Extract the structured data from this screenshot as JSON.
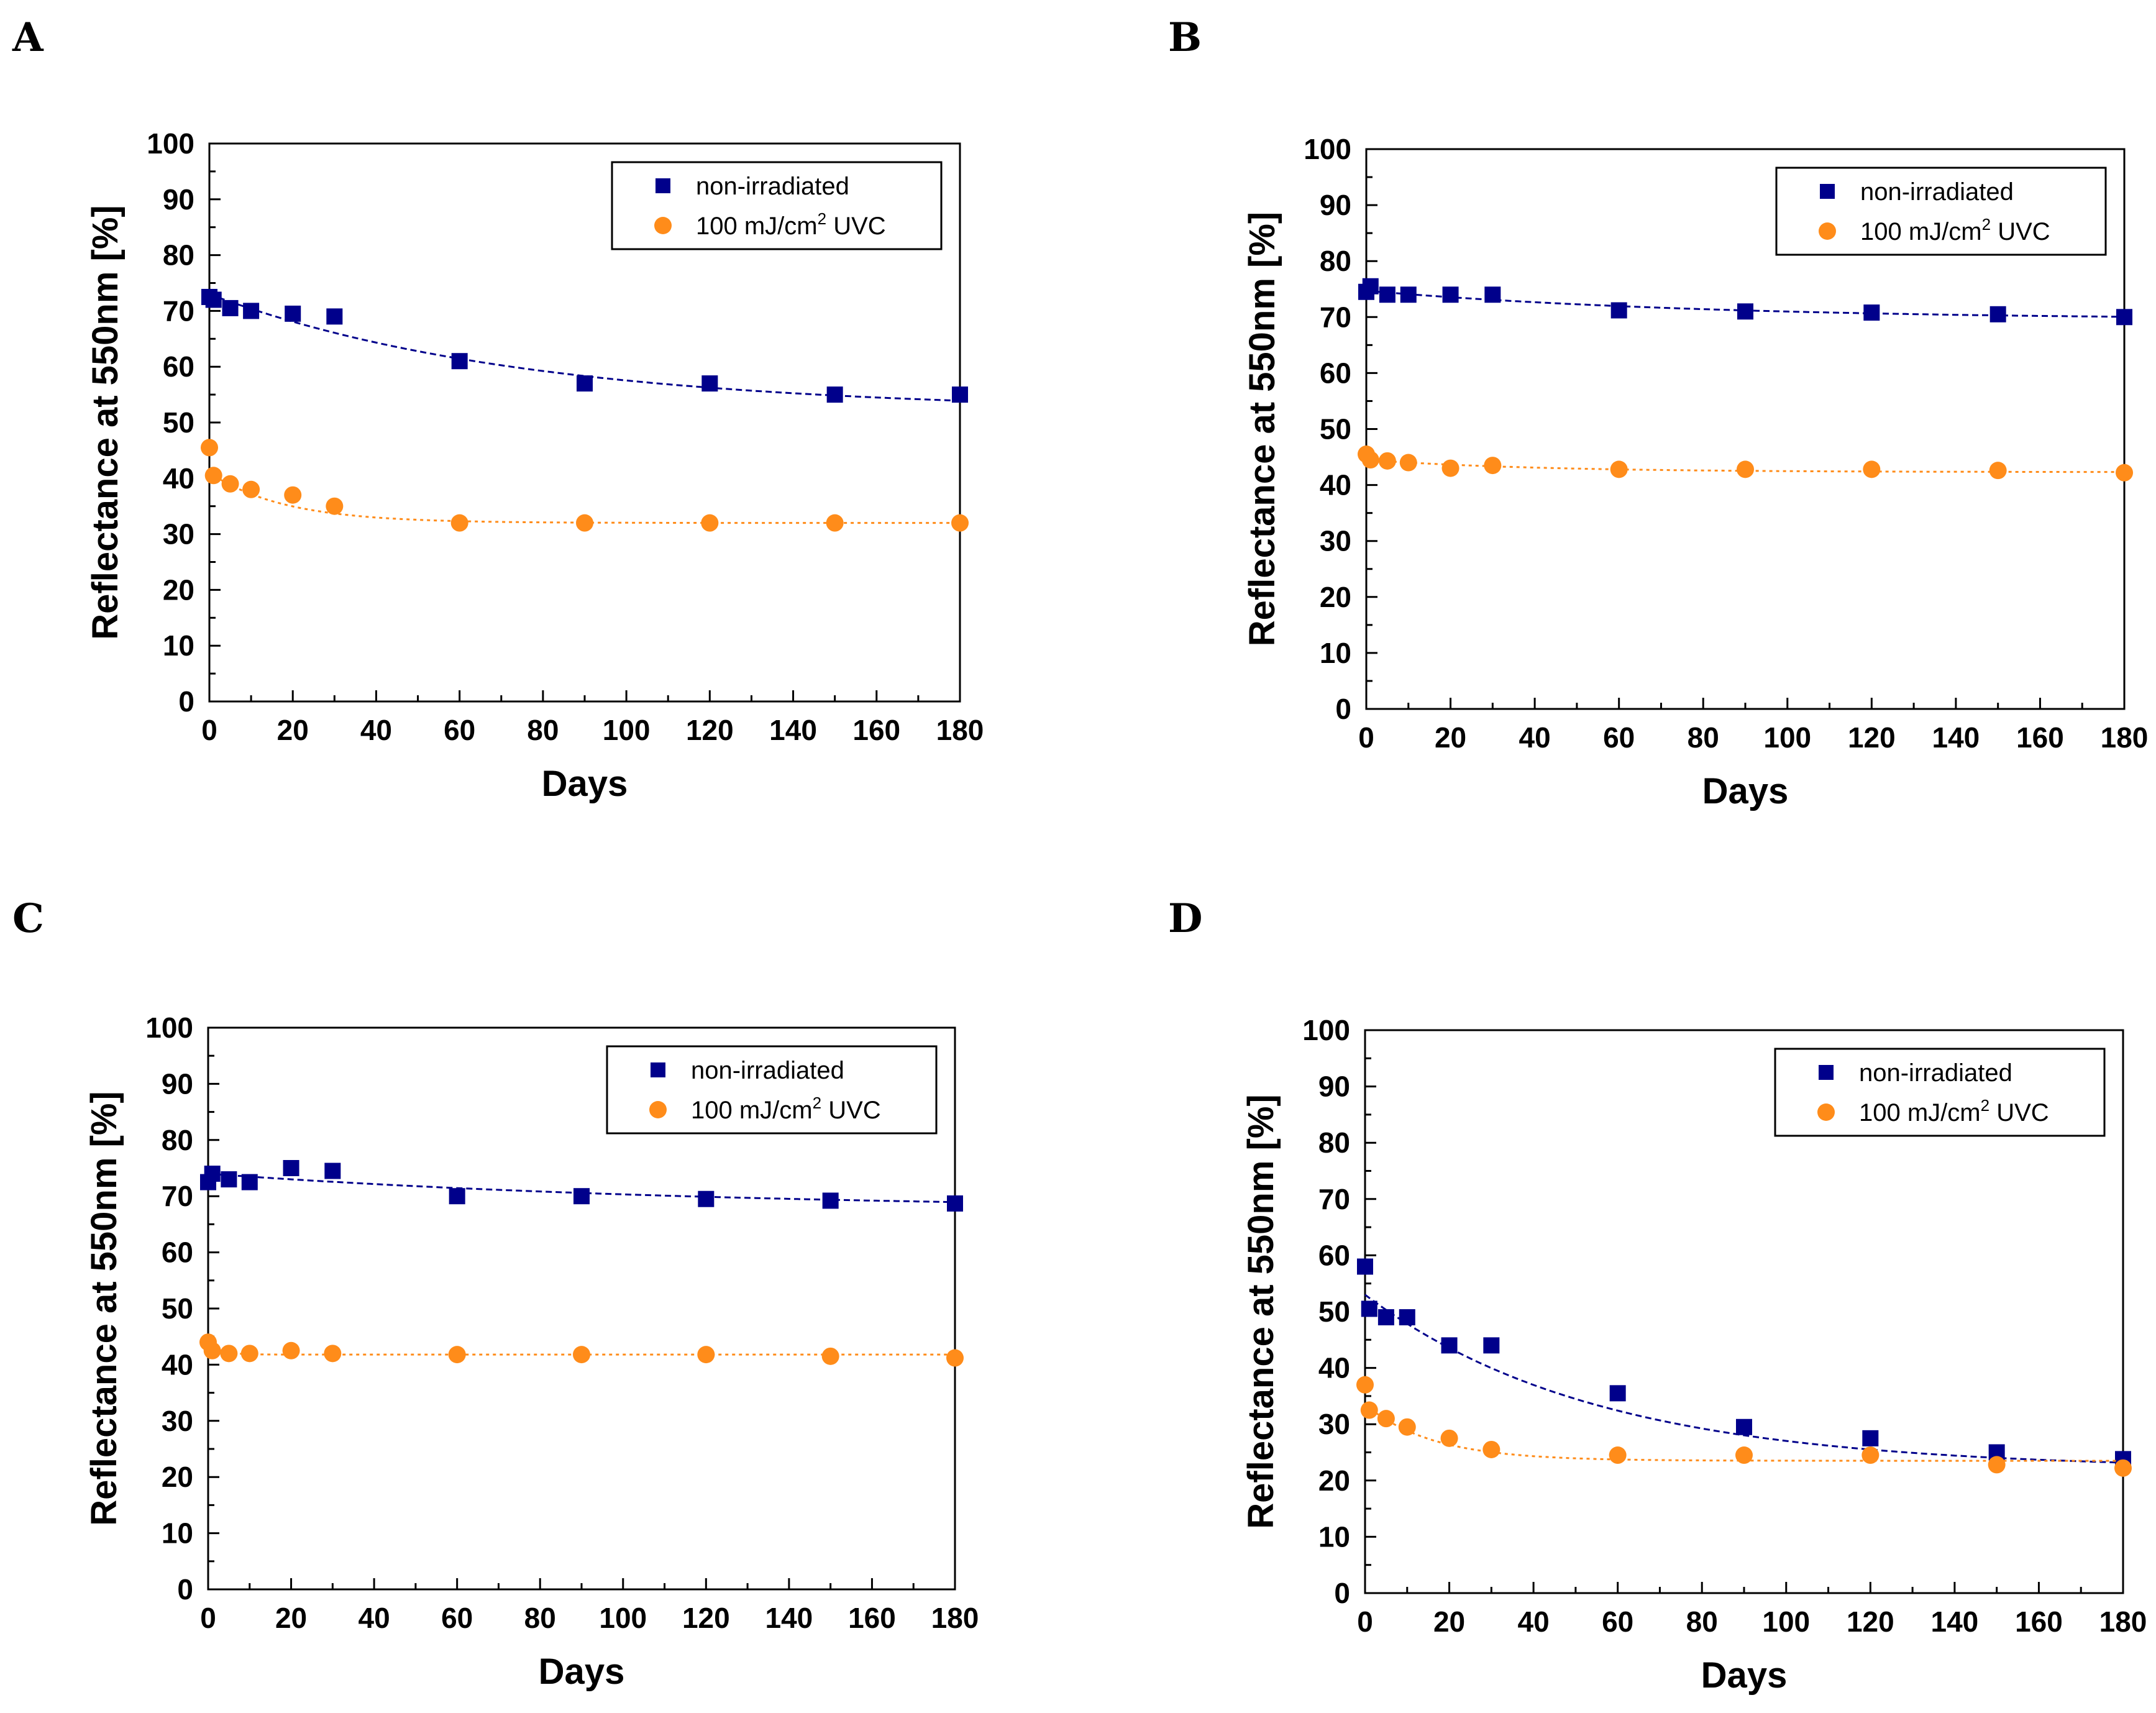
{
  "figure": {
    "colors": {
      "non_irradiated": "#00008B",
      "uvc": "#FF8C1A",
      "axis": "#000000"
    },
    "legend_labels": {
      "non_irradiated": "non-irradiated",
      "uvc_prefix": "100 mJ/cm",
      "uvc_sup": "2",
      "uvc_suffix": " UVC"
    }
  },
  "chart_data": [
    {
      "panel": "A",
      "type": "scatter",
      "xlabel": "Days",
      "ylabel": "Reflectance at 550nm [%]",
      "xlim": [
        0,
        180
      ],
      "ylim": [
        0,
        100
      ],
      "xticks": [
        0,
        20,
        40,
        60,
        80,
        100,
        120,
        140,
        160,
        180
      ],
      "yticks": [
        0,
        10,
        20,
        30,
        40,
        50,
        60,
        70,
        80,
        90,
        100
      ],
      "legend_position": "top-right",
      "series": [
        {
          "name": "non-irradiated",
          "marker": "square",
          "x": [
            0,
            1,
            5,
            10,
            20,
            30,
            60,
            90,
            120,
            150,
            180
          ],
          "y": [
            72.5,
            72,
            70.5,
            70,
            69.5,
            69,
            61,
            57,
            57,
            55,
            55
          ],
          "fit": {
            "base": 52,
            "amp": 21,
            "tau": 75
          }
        },
        {
          "name": "100 mJ/cm2 UVC",
          "marker": "circle",
          "x": [
            0,
            1,
            5,
            10,
            20,
            30,
            60,
            90,
            120,
            150,
            180
          ],
          "y": [
            45.5,
            40.5,
            39,
            38,
            37,
            35,
            32,
            32,
            32,
            32,
            32
          ],
          "fit": {
            "base": 32,
            "amp": 9,
            "tau": 18
          }
        }
      ]
    },
    {
      "panel": "B",
      "type": "scatter",
      "xlabel": "Days",
      "ylabel": "Reflectance at 550nm [%]",
      "xlim": [
        0,
        180
      ],
      "ylim": [
        0,
        100
      ],
      "xticks": [
        0,
        20,
        40,
        60,
        80,
        100,
        120,
        140,
        160,
        180
      ],
      "yticks": [
        0,
        10,
        20,
        30,
        40,
        50,
        60,
        70,
        80,
        90,
        100
      ],
      "legend_position": "top-right",
      "series": [
        {
          "name": "non-irradiated",
          "marker": "square",
          "x": [
            0,
            1,
            5,
            10,
            20,
            30,
            60,
            90,
            120,
            150,
            180
          ],
          "y": [
            74.5,
            75.5,
            74,
            74,
            74,
            74,
            71.2,
            71,
            70.8,
            70.5,
            70
          ],
          "fit": {
            "base": 69.5,
            "amp": 5.2,
            "tau": 80
          }
        },
        {
          "name": "100 mJ/cm2 UVC",
          "marker": "circle",
          "x": [
            0,
            1,
            5,
            10,
            20,
            30,
            60,
            90,
            120,
            150,
            180
          ],
          "y": [
            45.5,
            44.5,
            44.3,
            44,
            43,
            43.5,
            42.8,
            42.8,
            42.8,
            42.6,
            42.2
          ],
          "fit": {
            "base": 42.3,
            "amp": 2.2,
            "tau": 40
          }
        }
      ]
    },
    {
      "panel": "C",
      "type": "scatter",
      "xlabel": "Days",
      "ylabel": "Reflectance at 550nm [%]",
      "xlim": [
        0,
        180
      ],
      "ylim": [
        0,
        100
      ],
      "xticks": [
        0,
        20,
        40,
        60,
        80,
        100,
        120,
        140,
        160,
        180
      ],
      "yticks": [
        0,
        10,
        20,
        30,
        40,
        50,
        60,
        70,
        80,
        90,
        100
      ],
      "legend_position": "top-right",
      "series": [
        {
          "name": "non-irradiated",
          "marker": "square",
          "x": [
            0,
            1,
            5,
            10,
            20,
            30,
            60,
            90,
            120,
            150,
            180
          ],
          "y": [
            72.5,
            74,
            73,
            72.5,
            75,
            74.5,
            70,
            70,
            69.5,
            69.2,
            68.7
          ],
          "fit": {
            "base": 67.5,
            "amp": 6.5,
            "tau": 120
          }
        },
        {
          "name": "100 mJ/cm2 UVC",
          "marker": "circle",
          "x": [
            0,
            1,
            5,
            10,
            20,
            30,
            60,
            90,
            120,
            150,
            180
          ],
          "y": [
            44,
            42.5,
            42,
            42,
            42.5,
            42,
            41.8,
            41.8,
            41.8,
            41.5,
            41.2
          ],
          "fit": {
            "base": 41.8,
            "amp": 2,
            "tau": 3
          }
        }
      ]
    },
    {
      "panel": "D",
      "type": "scatter",
      "xlabel": "Days",
      "ylabel": "Reflectance at 550nm [%]",
      "xlim": [
        0,
        180
      ],
      "ylim": [
        0,
        100
      ],
      "xticks": [
        0,
        20,
        40,
        60,
        80,
        100,
        120,
        140,
        160,
        180
      ],
      "yticks": [
        0,
        10,
        20,
        30,
        40,
        50,
        60,
        70,
        80,
        90,
        100
      ],
      "legend_position": "top-right",
      "series": [
        {
          "name": "non-irradiated",
          "marker": "square",
          "x": [
            0,
            1,
            5,
            10,
            20,
            30,
            60,
            90,
            120,
            150,
            180
          ],
          "y": [
            58,
            50.5,
            49,
            49,
            44,
            44,
            35.5,
            29.5,
            27.5,
            25,
            23.8
          ],
          "fit": {
            "base": 22,
            "amp": 31,
            "tau": 55
          }
        },
        {
          "name": "100 mJ/cm2 UVC",
          "marker": "circle",
          "x": [
            0,
            1,
            5,
            10,
            20,
            30,
            60,
            90,
            120,
            150,
            180
          ],
          "y": [
            37,
            32.5,
            31,
            29.5,
            27.5,
            25.5,
            24.5,
            24.5,
            24.5,
            22.8,
            22.2
          ],
          "fit": {
            "base": 23.5,
            "amp": 10,
            "tau": 16
          }
        }
      ]
    }
  ]
}
